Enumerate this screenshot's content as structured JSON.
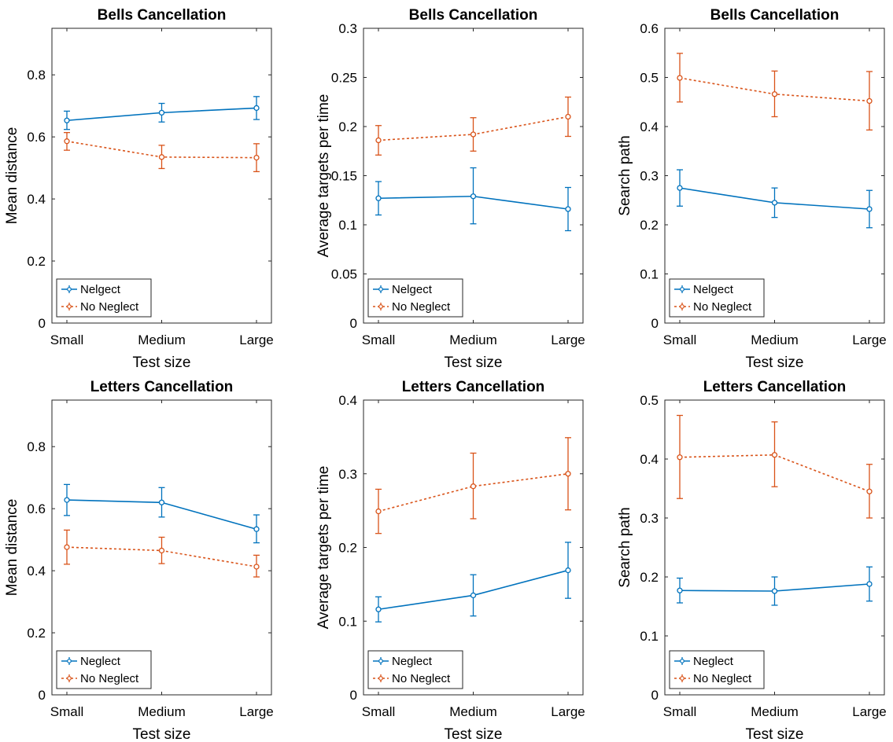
{
  "colors": {
    "neglect": "#0072BD",
    "no_neglect": "#D95319"
  },
  "chart_data": [
    {
      "type": "line",
      "title": "Bells Cancellation",
      "xlabel": "Test size",
      "ylabel": "Mean distance",
      "categories": [
        "Small",
        "Medium",
        "Large"
      ],
      "ylim": [
        0,
        0.95
      ],
      "yticks": [
        0,
        0.2,
        0.4,
        0.6,
        0.8
      ],
      "yticklabels": [
        "0",
        "0.2",
        "0.4",
        "0.6",
        "0.8"
      ],
      "legend_position": "bottom-left",
      "series": [
        {
          "name": "Nelgect",
          "style": "solid",
          "values": [
            0.653,
            0.678,
            0.693
          ],
          "lower": [
            0.624,
            0.648,
            0.656
          ],
          "upper": [
            0.683,
            0.708,
            0.73
          ]
        },
        {
          "name": "No Neglect",
          "style": "dotted",
          "values": [
            0.586,
            0.535,
            0.533
          ],
          "lower": [
            0.557,
            0.498,
            0.488
          ],
          "upper": [
            0.614,
            0.573,
            0.578
          ]
        }
      ]
    },
    {
      "type": "line",
      "title": "Bells Cancellation",
      "xlabel": "Test size",
      "ylabel": "Average targets per time",
      "categories": [
        "Small",
        "Medium",
        "Large"
      ],
      "ylim": [
        0,
        0.3
      ],
      "yticks": [
        0,
        0.05,
        0.1,
        0.15,
        0.2,
        0.25,
        0.3
      ],
      "yticklabels": [
        "0",
        "0.05",
        "0.1",
        "0.15",
        "0.2",
        "0.25",
        "0.3"
      ],
      "legend_position": "bottom-left",
      "series": [
        {
          "name": "Nelgect",
          "style": "solid",
          "values": [
            0.127,
            0.129,
            0.116
          ],
          "lower": [
            0.11,
            0.101,
            0.094
          ],
          "upper": [
            0.144,
            0.158,
            0.138
          ]
        },
        {
          "name": "No Neglect",
          "style": "dotted",
          "values": [
            0.186,
            0.192,
            0.21
          ],
          "lower": [
            0.171,
            0.175,
            0.19
          ],
          "upper": [
            0.201,
            0.209,
            0.23
          ]
        }
      ]
    },
    {
      "type": "line",
      "title": "Bells Cancellation",
      "xlabel": "Test size",
      "ylabel": "Search path",
      "categories": [
        "Small",
        "Medium",
        "Large"
      ],
      "ylim": [
        0,
        0.6
      ],
      "yticks": [
        0,
        0.1,
        0.2,
        0.3,
        0.4,
        0.5,
        0.6
      ],
      "yticklabels": [
        "0",
        "0.1",
        "0.2",
        "0.3",
        "0.4",
        "0.5",
        "0.6"
      ],
      "legend_position": "bottom-left",
      "series": [
        {
          "name": "Nelgect",
          "style": "solid",
          "values": [
            0.275,
            0.245,
            0.232
          ],
          "lower": [
            0.238,
            0.215,
            0.194
          ],
          "upper": [
            0.312,
            0.275,
            0.27
          ]
        },
        {
          "name": "No Neglect",
          "style": "dotted",
          "values": [
            0.499,
            0.466,
            0.452
          ],
          "lower": [
            0.45,
            0.42,
            0.393
          ],
          "upper": [
            0.549,
            0.513,
            0.512
          ]
        }
      ]
    },
    {
      "type": "line",
      "title": "Letters Cancellation",
      "xlabel": "Test size",
      "ylabel": "Mean distance",
      "categories": [
        "Small",
        "Medium",
        "Large"
      ],
      "ylim": [
        0,
        0.95
      ],
      "yticks": [
        0,
        0.2,
        0.4,
        0.6,
        0.8
      ],
      "yticklabels": [
        "0",
        "0.2",
        "0.4",
        "0.6",
        "0.8"
      ],
      "legend_position": "bottom-left",
      "series": [
        {
          "name": "Neglect",
          "style": "solid",
          "values": [
            0.628,
            0.62,
            0.534
          ],
          "lower": [
            0.578,
            0.573,
            0.49
          ],
          "upper": [
            0.678,
            0.668,
            0.58
          ]
        },
        {
          "name": "No Neglect",
          "style": "dotted",
          "values": [
            0.476,
            0.465,
            0.413
          ],
          "lower": [
            0.421,
            0.423,
            0.38
          ],
          "upper": [
            0.531,
            0.508,
            0.45
          ]
        }
      ]
    },
    {
      "type": "line",
      "title": "Letters Cancellation",
      "xlabel": "Test size",
      "ylabel": "Average targets per time",
      "categories": [
        "Small",
        "Medium",
        "Large"
      ],
      "ylim": [
        0,
        0.4
      ],
      "yticks": [
        0,
        0.1,
        0.2,
        0.3,
        0.4
      ],
      "yticklabels": [
        "0",
        "0.1",
        "0.2",
        "0.3",
        "0.4"
      ],
      "legend_position": "bottom-left",
      "series": [
        {
          "name": "Neglect",
          "style": "solid",
          "values": [
            0.116,
            0.135,
            0.169
          ],
          "lower": [
            0.099,
            0.107,
            0.131
          ],
          "upper": [
            0.133,
            0.163,
            0.207
          ]
        },
        {
          "name": "No Neglect",
          "style": "dotted",
          "values": [
            0.249,
            0.283,
            0.3
          ],
          "lower": [
            0.219,
            0.239,
            0.251
          ],
          "upper": [
            0.279,
            0.328,
            0.349
          ]
        }
      ]
    },
    {
      "type": "line",
      "title": "Letters Cancellation",
      "xlabel": "Test size",
      "ylabel": "Search path",
      "categories": [
        "Small",
        "Medium",
        "Large"
      ],
      "ylim": [
        0,
        0.5
      ],
      "yticks": [
        0,
        0.1,
        0.2,
        0.3,
        0.4,
        0.5
      ],
      "yticklabels": [
        "0",
        "0.1",
        "0.2",
        "0.3",
        "0.4",
        "0.5"
      ],
      "legend_position": "bottom-left",
      "series": [
        {
          "name": "Neglect",
          "style": "solid",
          "values": [
            0.177,
            0.176,
            0.188
          ],
          "lower": [
            0.156,
            0.152,
            0.159
          ],
          "upper": [
            0.198,
            0.2,
            0.217
          ]
        },
        {
          "name": "No Neglect",
          "style": "dotted",
          "values": [
            0.403,
            0.407,
            0.345
          ],
          "lower": [
            0.333,
            0.353,
            0.3
          ],
          "upper": [
            0.474,
            0.463,
            0.391
          ]
        }
      ]
    }
  ]
}
